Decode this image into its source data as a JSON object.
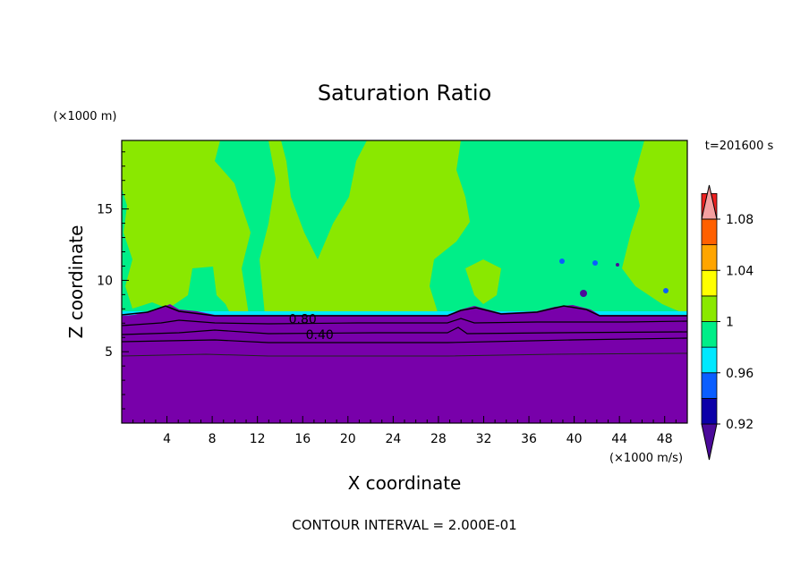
{
  "chart_data": {
    "type": "heatmap",
    "title": "Saturation Ratio",
    "xlabel": "X coordinate",
    "ylabel": "Z coordinate",
    "x_unit": "(×1000 m/s)",
    "y_unit": "(×1000 m)",
    "time_label": "t=201600 s",
    "contour_interval_label": "CONTOUR INTERVAL = 2.000E-01",
    "xlim": [
      0,
      50
    ],
    "ylim": [
      0,
      19.8
    ],
    "x_ticks": [
      "4",
      "8",
      "12",
      "16",
      "20",
      "24",
      "28",
      "32",
      "36",
      "40",
      "44",
      "48"
    ],
    "y_ticks": [
      "5",
      "10",
      "15"
    ],
    "contour_labels": [
      {
        "text": "0.80",
        "x": 16,
        "y": 7.3
      },
      {
        "text": "0.40",
        "x": 17.5,
        "y": 6.2
      }
    ],
    "colorbar": {
      "ticks": [
        "1.08",
        "1.04",
        "1",
        "0.96",
        "0.92"
      ],
      "levels": [
        0.9,
        0.92,
        0.94,
        0.96,
        0.98,
        1.0,
        1.02,
        1.04,
        1.06,
        1.08,
        1.1
      ],
      "colors": [
        "#4b0a9a",
        "#0c00a8",
        "#0a5eff",
        "#00e8ff",
        "#00ee88",
        "#8ae800",
        "#ffff00",
        "#ffa500",
        "#ff6000",
        "#ee2020",
        "#f4a0a0"
      ]
    },
    "regions": {
      "dry_layer_color": "#7800aa",
      "dry_layer_top": 7.6,
      "upper_colors": {
        "near_saturated": "#00ee88",
        "supersaturated": "#8ae800"
      }
    }
  }
}
